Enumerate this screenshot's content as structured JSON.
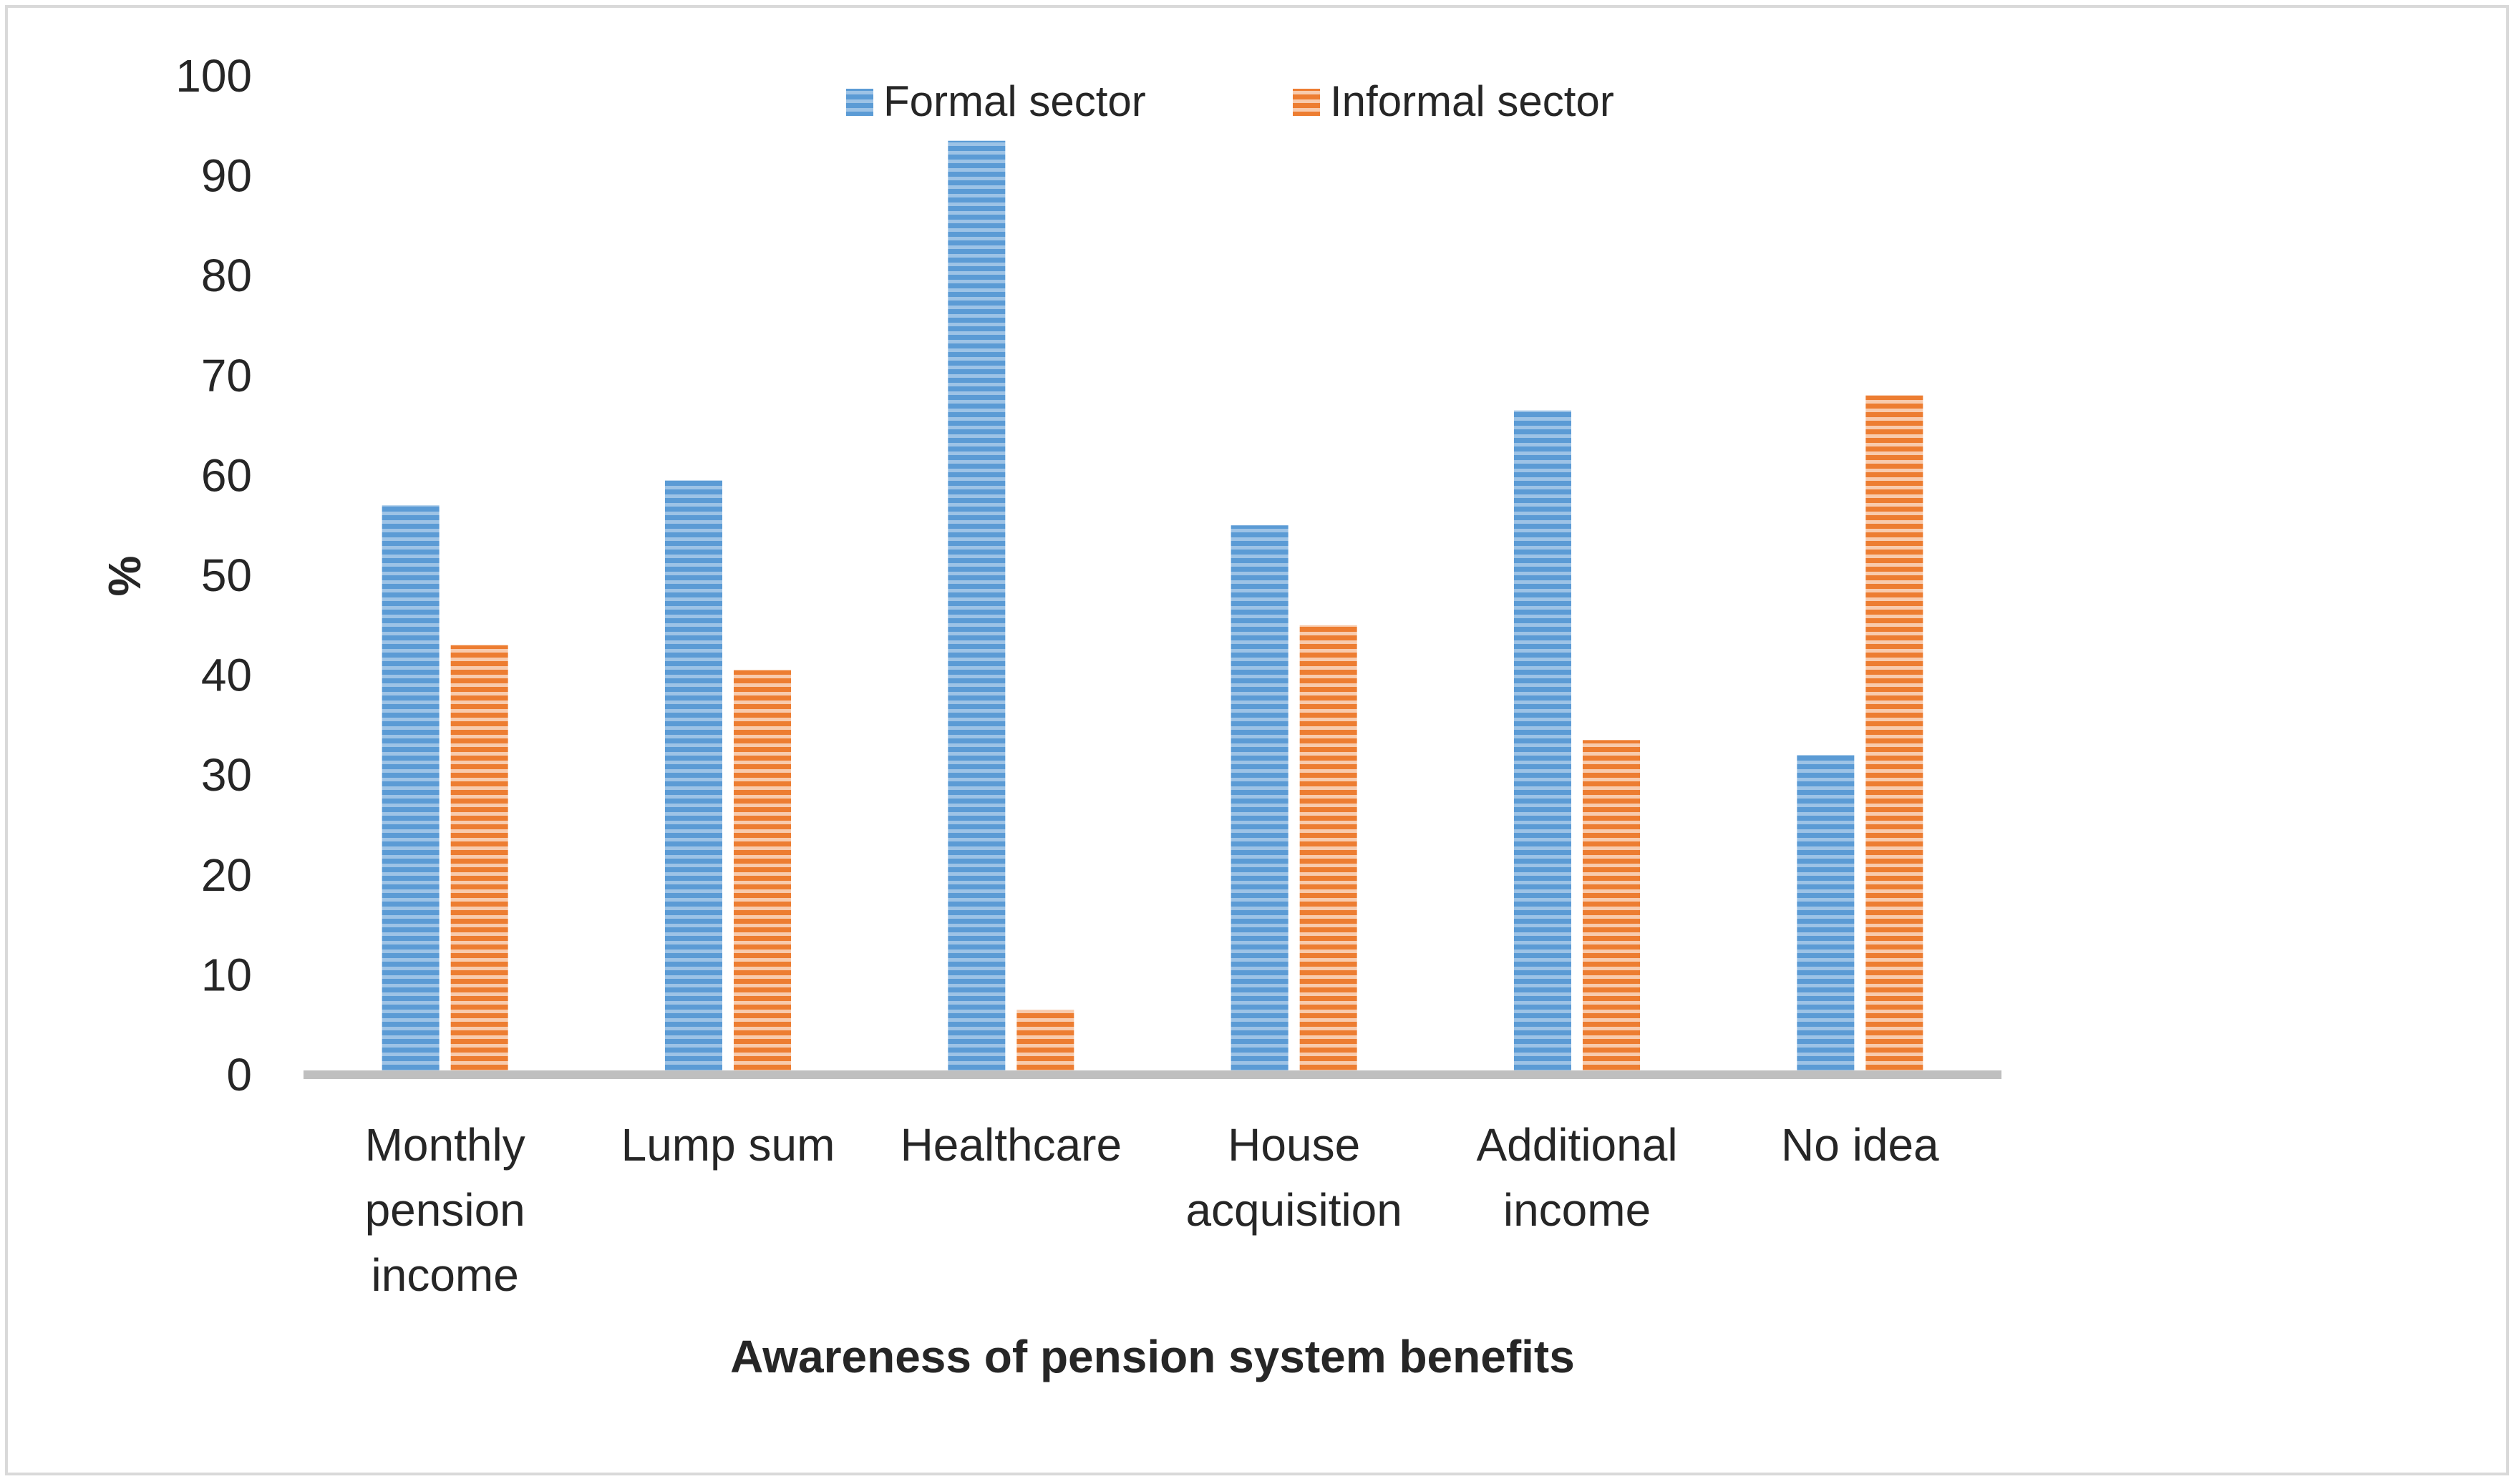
{
  "chart_data": {
    "type": "bar",
    "title": "",
    "xlabel": "Awareness of pension system benefits",
    "ylabel": "%",
    "ylim": [
      0,
      100
    ],
    "yticks": [
      "0",
      "10",
      "20",
      "30",
      "40",
      "50",
      "60",
      "70",
      "80",
      "90",
      "100"
    ],
    "categories": [
      [
        "Monthly",
        "pension",
        "income"
      ],
      [
        "Lump sum"
      ],
      [
        "Healthcare"
      ],
      [
        "House",
        "acquisition"
      ],
      [
        "Additional",
        "income"
      ],
      [
        "No idea"
      ]
    ],
    "series": [
      {
        "name": "Formal sector",
        "color": "#5B9BD5",
        "values": [
          57,
          59.5,
          93.5,
          55,
          66.5,
          32
        ]
      },
      {
        "name": "Informal sector",
        "color": "#ED7D31",
        "values": [
          43,
          40.5,
          6.5,
          45,
          33.5,
          68
        ]
      }
    ],
    "legend_position": "top-center",
    "grid": false
  }
}
